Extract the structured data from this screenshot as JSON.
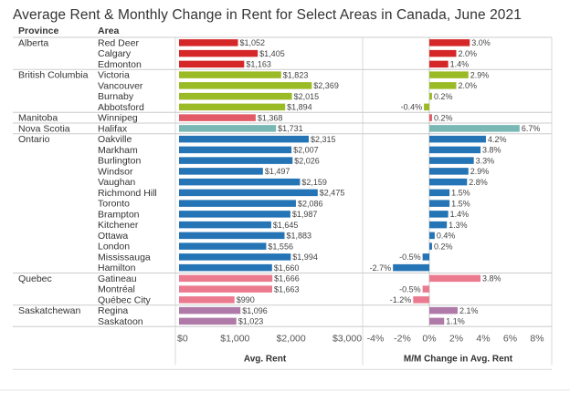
{
  "chart_data": {
    "type": "bar",
    "title": "Average Rent & Monthly Change in Rent for Select Areas in Canada, June 2021",
    "column_headers": {
      "province": "Province",
      "area": "Area"
    },
    "groups": [
      {
        "province": "Alberta",
        "color": "#d62728",
        "rows": [
          {
            "area": "Red Deer",
            "rent": 1052,
            "rent_label": "$1,052",
            "change": 3.0,
            "change_label": "3.0%"
          },
          {
            "area": "Calgary",
            "rent": 1405,
            "rent_label": "$1,405",
            "change": 2.0,
            "change_label": "2.0%"
          },
          {
            "area": "Edmonton",
            "rent": 1163,
            "rent_label": "$1,163",
            "change": 1.4,
            "change_label": "1.4%"
          }
        ]
      },
      {
        "province": "British Columbia",
        "color": "#9bbb26",
        "rows": [
          {
            "area": "Victoria",
            "rent": 1823,
            "rent_label": "$1,823",
            "change": 2.9,
            "change_label": "2.9%"
          },
          {
            "area": "Vancouver",
            "rent": 2369,
            "rent_label": "$2,369",
            "change": 2.0,
            "change_label": "2.0%"
          },
          {
            "area": "Burnaby",
            "rent": 2015,
            "rent_label": "$2,015",
            "change": 0.2,
            "change_label": "0.2%"
          },
          {
            "area": "Abbotsford",
            "rent": 1894,
            "rent_label": "$1,894",
            "change": -0.4,
            "change_label": "-0.4%"
          }
        ]
      },
      {
        "province": "Manitoba",
        "color": "#e35b66",
        "rows": [
          {
            "area": "Winnipeg",
            "rent": 1368,
            "rent_label": "$1,368",
            "change": 0.2,
            "change_label": "0.2%"
          }
        ]
      },
      {
        "province": "Nova Scotia",
        "color": "#79b8b5",
        "rows": [
          {
            "area": "Halifax",
            "rent": 1731,
            "rent_label": "$1,731",
            "change": 6.7,
            "change_label": "6.7%"
          }
        ]
      },
      {
        "province": "Ontario",
        "color": "#2574b5",
        "rows": [
          {
            "area": "Oakville",
            "rent": 2315,
            "rent_label": "$2,315",
            "change": 4.2,
            "change_label": "4.2%"
          },
          {
            "area": "Markham",
            "rent": 2007,
            "rent_label": "$2,007",
            "change": 3.8,
            "change_label": "3.8%"
          },
          {
            "area": "Burlington",
            "rent": 2026,
            "rent_label": "$2,026",
            "change": 3.3,
            "change_label": "3.3%"
          },
          {
            "area": "Windsor",
            "rent": 1497,
            "rent_label": "$1,497",
            "change": 2.9,
            "change_label": "2.9%"
          },
          {
            "area": "Vaughan",
            "rent": 2159,
            "rent_label": "$2,159",
            "change": 2.8,
            "change_label": "2.8%"
          },
          {
            "area": "Richmond Hill",
            "rent": 2475,
            "rent_label": "$2,475",
            "change": 1.5,
            "change_label": "1.5%"
          },
          {
            "area": "Toronto",
            "rent": 2086,
            "rent_label": "$2,086",
            "change": 1.5,
            "change_label": "1.5%"
          },
          {
            "area": "Brampton",
            "rent": 1987,
            "rent_label": "$1,987",
            "change": 1.4,
            "change_label": "1.4%"
          },
          {
            "area": "Kitchener",
            "rent": 1645,
            "rent_label": "$1,645",
            "change": 1.3,
            "change_label": "1.3%"
          },
          {
            "area": "Ottawa",
            "rent": 1883,
            "rent_label": "$1,883",
            "change": 0.4,
            "change_label": "0.4%"
          },
          {
            "area": "London",
            "rent": 1556,
            "rent_label": "$1,556",
            "change": 0.2,
            "change_label": "0.2%"
          },
          {
            "area": "Mississauga",
            "rent": 1994,
            "rent_label": "$1,994",
            "change": -0.5,
            "change_label": "-0.5%"
          },
          {
            "area": "Hamilton",
            "rent": 1660,
            "rent_label": "$1,660",
            "change": -2.7,
            "change_label": "-2.7%"
          }
        ]
      },
      {
        "province": "Quebec",
        "color": "#ec7a8f",
        "rows": [
          {
            "area": "Gatineau",
            "rent": 1666,
            "rent_label": "$1,666",
            "change": 3.8,
            "change_label": "3.8%"
          },
          {
            "area": "Montréal",
            "rent": 1663,
            "rent_label": "$1,663",
            "change": -0.5,
            "change_label": "-0.5%"
          },
          {
            "area": "Québec City",
            "rent": 990,
            "rent_label": "$990",
            "change": -1.2,
            "change_label": "-1.2%"
          }
        ]
      },
      {
        "province": "Saskatchewan",
        "color": "#b07aa8",
        "rows": [
          {
            "area": "Regina",
            "rent": 1096,
            "rent_label": "$1,096",
            "change": 2.1,
            "change_label": "2.1%"
          },
          {
            "area": "Saskatoon",
            "rent": 1023,
            "rent_label": "$1,023",
            "change": 1.1,
            "change_label": "1.1%"
          }
        ]
      }
    ],
    "rent_axis": {
      "label": "Avg. Rent",
      "range": [
        0,
        3000
      ],
      "ticks": [
        0,
        1000,
        2000,
        3000
      ],
      "tick_labels": [
        "$0",
        "$1,000",
        "$2,000",
        "$3,000"
      ]
    },
    "change_axis": {
      "label": "M/M Change in Avg. Rent",
      "range": [
        -4,
        8
      ],
      "ticks": [
        -4,
        -2,
        0,
        2,
        4,
        6,
        8
      ],
      "tick_labels": [
        "-4%",
        "-2%",
        "0%",
        "2%",
        "4%",
        "6%",
        "8%"
      ]
    },
    "grid": false,
    "legend": "none"
  }
}
